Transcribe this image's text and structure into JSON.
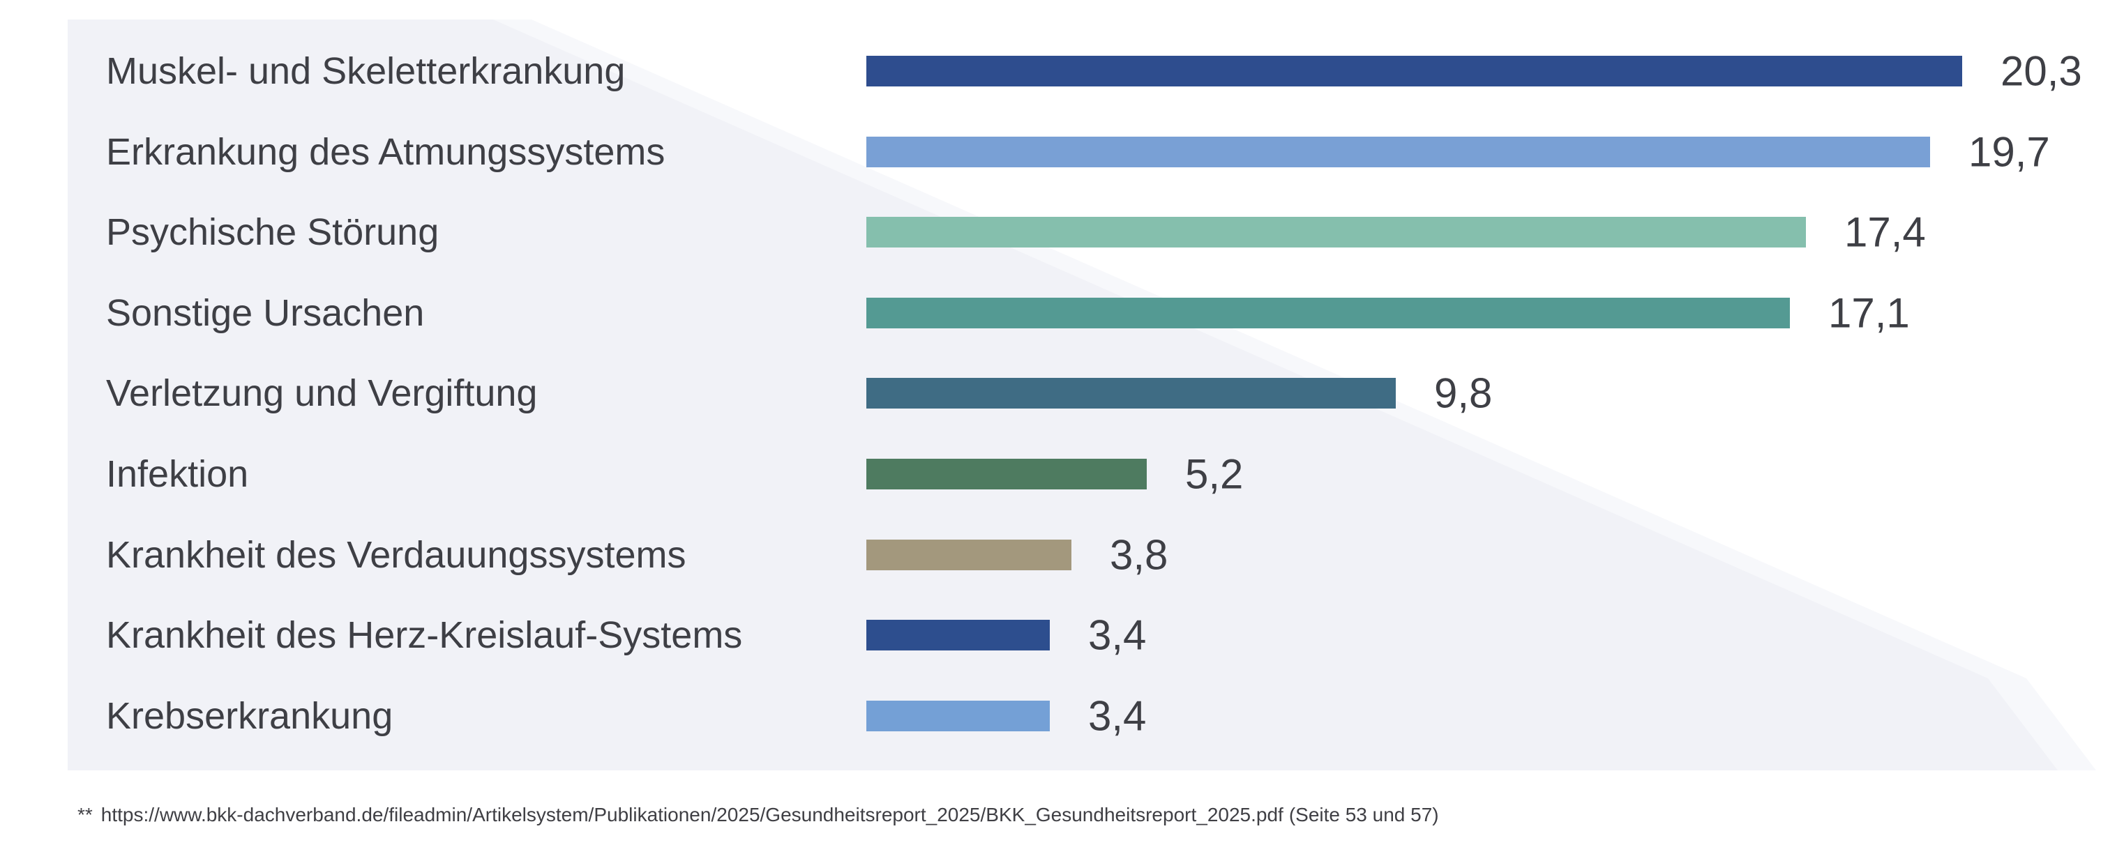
{
  "page": {
    "background": "#ffffff",
    "panel_color": "#f1f2f7"
  },
  "chart_data": {
    "type": "bar",
    "orientation": "horizontal",
    "title": "",
    "xlabel": "",
    "ylabel": "",
    "grid": false,
    "legend": false,
    "xlim": [
      0,
      21
    ],
    "categories": [
      "Muskel- und Skeletterkrankung",
      "Erkrankung des Atmungssystems",
      "Psychische Störung",
      "Sonstige Ursachen",
      "Verletzung und Vergiftung",
      "Infektion",
      "Krankheit des Verdauungssystems",
      "Krankheit des Herz-Kreislauf-Systems",
      "Krebserkrankung"
    ],
    "values": [
      20.3,
      19.7,
      17.4,
      17.1,
      9.8,
      5.2,
      3.8,
      3.4,
      3.4
    ],
    "value_labels": [
      "20,3",
      "19,7",
      "17,4",
      "17,1",
      "9,8",
      "5,2",
      "3,8",
      "3,4",
      "3,4"
    ],
    "bar_colors": [
      "#2e4d8e",
      "#79a0d5",
      "#85bfad",
      "#549a93",
      "#3f6c84",
      "#4e7b60",
      "#a3987d",
      "#2d4e8e",
      "#74a0d6"
    ],
    "text_color": "#3e3f45"
  },
  "footnote": {
    "marker": "**",
    "url": "https://www.bkk-dachverband.de/fileadmin/Artikelsystem/Publikationen/2025/Gesundheitsreport_2025/BKK_Gesundheitsreport_2025.pdf",
    "pages": "(Seite 53 und 57)"
  }
}
